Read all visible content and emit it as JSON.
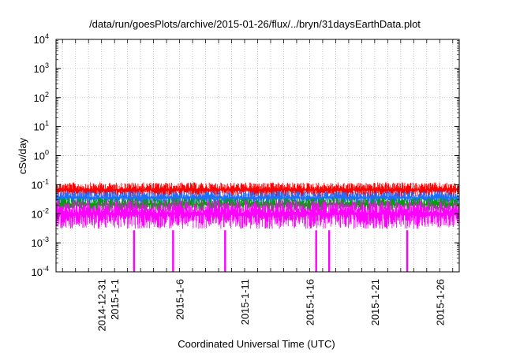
{
  "chart_data": {
    "type": "line",
    "title": "/data/run/goesPlots/archive/2015-01-26/flux/../bryn/31daysEarthData.plot",
    "xlabel": "Coordinated Universal Time (UTC)",
    "ylabel": "cSv/day",
    "y_scale": "log",
    "ylim": [
      0.0001,
      10000
    ],
    "xlim": [
      "2014-12-27T12:00",
      "2015-01-27T12:00"
    ],
    "grid": true,
    "y_ticks": [
      {
        "value": 0.0001,
        "base": "10",
        "exp": "-4"
      },
      {
        "value": 0.001,
        "base": "10",
        "exp": "-3"
      },
      {
        "value": 0.01,
        "base": "10",
        "exp": "-2"
      },
      {
        "value": 0.1,
        "base": "10",
        "exp": "-1"
      },
      {
        "value": 1,
        "base": "10",
        "exp": "0"
      },
      {
        "value": 10,
        "base": "10",
        "exp": "1"
      },
      {
        "value": 100,
        "base": "10",
        "exp": "2"
      },
      {
        "value": 1000,
        "base": "10",
        "exp": "3"
      },
      {
        "value": 10000,
        "base": "10",
        "exp": "4"
      }
    ],
    "x_ticks": [
      "2014-12-31",
      "2015-1-1",
      "2015-1-6",
      "2015-1-11",
      "2015-1-16",
      "2015-1-21",
      "2015-1-26"
    ],
    "series": [
      {
        "color": "#ff0000",
        "typical_min": 0.035,
        "typical_max": 0.12
      },
      {
        "color": "#1e6fff",
        "typical_min": 0.02,
        "typical_max": 0.06
      },
      {
        "color": "#00a000",
        "typical_min": 0.012,
        "typical_max": 0.035
      },
      {
        "color": "#ff00ff",
        "typical_min": 0.003,
        "typical_max": 0.03,
        "dropouts": [
          "2015-01-02",
          "2015-01-05",
          "2015-01-09",
          "2015-01-16",
          "2015-01-17",
          "2015-01-23"
        ]
      }
    ]
  }
}
